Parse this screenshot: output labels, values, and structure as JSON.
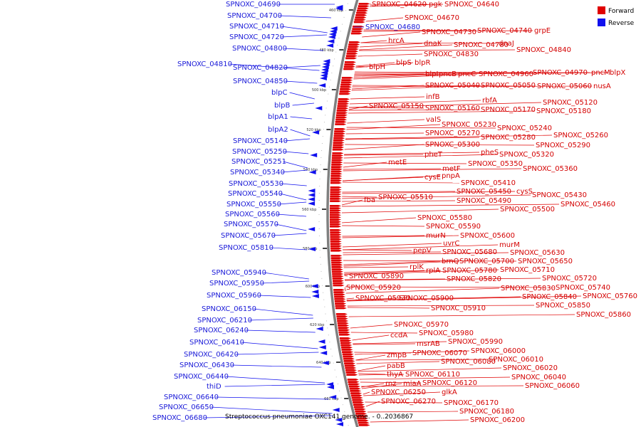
{
  "caption": "Streptococcus pneumoniae OXC141 genome. - 0..2036867",
  "legend": [
    {
      "label": "Forward",
      "color": "#e00000"
    },
    {
      "label": "Reverse",
      "color": "#1010ee"
    }
  ],
  "colors": {
    "forward": "#e00000",
    "reverse": "#1010ee",
    "backbone": "#7f7f7f"
  },
  "ticks": [
    "460 kbp",
    "480 kbp",
    "500 kbp",
    "520 kbp",
    "540 kbp",
    "560 kbp",
    "580 kbp",
    "600 kbp",
    "620 kbp",
    "640 kbp",
    "660 kbp"
  ],
  "forward_labels": [
    "SPNOXC_04620",
    "pgk",
    "SPNOXC_04640",
    "SPNOXC_04670",
    "SPNOXC_04730",
    "SPNOXC_04740",
    "grpE",
    "hrcA",
    "dnaK",
    "SPNOXC_04780",
    "dnaJ",
    "SPNOXC_04840",
    "SPNOXC_04830",
    "blpS",
    "blpR",
    "blpH",
    "blpI",
    "pncB",
    "pncC",
    "SPNOXC_04960",
    "SPNOXC_04970",
    "pncM",
    "blpX",
    "SPNOXC_05040",
    "SPNOXC_05050",
    "SPNOXC_05060",
    "nusA",
    "infB",
    "rbfA",
    "SPNOXC_05120",
    "SPNOXC_05160",
    "SPNOXC_05170",
    "SPNOXC_05180",
    "valS",
    "SPNOXC_05230",
    "SPNOXC_05240",
    "SPNOXC_05270",
    "SPNOXC_05280",
    "SPNOXC_05260",
    "SPNOXC_05300",
    "SPNOXC_05290",
    "pheT",
    "pheS",
    "SPNOXC_05320",
    "metE",
    "SPNOXC_05350",
    "metF",
    "SPNOXC_05360",
    "cysE",
    "pnpA",
    "SPNOXC_05410",
    "SPNOXC_05450",
    "cysS",
    "SPNOXC_05430",
    "fba",
    "SPNOXC_05510",
    "SPNOXC_05490",
    "SPNOXC_05460",
    "SPNOXC_05500",
    "SPNOXC_05580",
    "SPNOXC_05590",
    "murN",
    "SPNOXC_05600",
    "uvrC",
    "murM",
    "pepV",
    "SPNOXC_05680",
    "SPNOXC_05630",
    "brnQ",
    "SPNOXC_05700",
    "SPNOXC_05650",
    "rplK",
    "rplA",
    "SPNOXC_05780",
    "SPNOXC_05710",
    "SPNOXC_05890",
    "SPNOXC_05820",
    "SPNOXC_05720",
    "SPNOXC_05920",
    "SPNOXC_05830",
    "SPNOXC_05740",
    "SPNOXC_05930",
    "SPNOXC_05900",
    "SPNOXC_05840",
    "SPNOXC_05760",
    "SPNOXC_05910",
    "SPNOXC_05850",
    "SPNOXC_05860",
    "SPNOXC_05970",
    "ccdA",
    "SPNOXC_05980",
    "msrAB",
    "SPNOXC_05990",
    "SPNOXC_06000",
    "zmpB",
    "SPNOXC_06070",
    "SPNOXC_06010",
    "SPNOXC_06080",
    "SPNOXC_06020",
    "pabB",
    "thyA",
    "SPNOXC_06110",
    "SPNOXC_06040",
    "rnz",
    "miaA",
    "SPNOXC_06120",
    "SPNOXC_06060",
    "SPNOXC_06250",
    "glkA",
    "SPNOXC_06270",
    "SPNOXC_06170",
    "SPNOXC_06180",
    "SPNOXC_06200",
    "SPNOXC_05150"
  ],
  "reverse_labels": [
    "SPNOXC_04690",
    "SPNOXC_04700",
    "SPNOXC_04710",
    "SPNOXC_04720",
    "SPNOXC_04800",
    "SPNOXC_04810",
    "SPNOXC_04820",
    "SPNOXC_04850",
    "blpC",
    "blpB",
    "blpA1",
    "blpA2",
    "SPNOXC_05140",
    "SPNOXC_05250",
    "SPNOXC_05251",
    "SPNOXC_05340",
    "SPNOXC_05530",
    "SPNOXC_05540",
    "SPNOXC_05550",
    "SPNOXC_05560",
    "SPNOXC_05570",
    "SPNOXC_05670",
    "SPNOXC_05810",
    "SPNOXC_05940",
    "SPNOXC_05950",
    "SPNOXC_05960",
    "SPNOXC_06150",
    "SPNOXC_06210",
    "SPNOXC_06240",
    "SPNOXC_06410",
    "SPNOXC_06420",
    "SPNOXC_06430",
    "SPNOXC_06440",
    "thiD",
    "SPNOXC_06640",
    "SPNOXC_06650",
    "SPNOXC_06680",
    "SPNOXC_04680"
  ]
}
